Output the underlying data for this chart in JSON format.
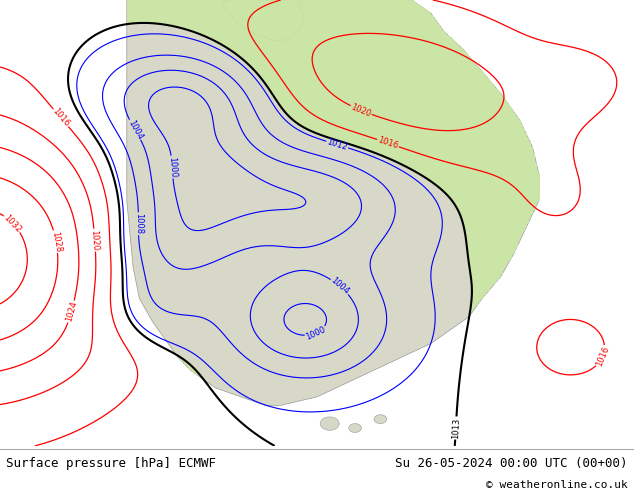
{
  "title_left": "Surface pressure [hPa] ECMWF",
  "title_right": "Su 26-05-2024 00:00 UTC (00+00)",
  "copyright": "© weatheronline.co.uk",
  "ocean_color": "#f0f4f8",
  "land_color": "#d8d8c8",
  "green_color": "#c8e8a0",
  "figwidth": 6.34,
  "figheight": 4.9,
  "dpi": 100,
  "title_fontsize": 9,
  "copyright_fontsize": 8
}
